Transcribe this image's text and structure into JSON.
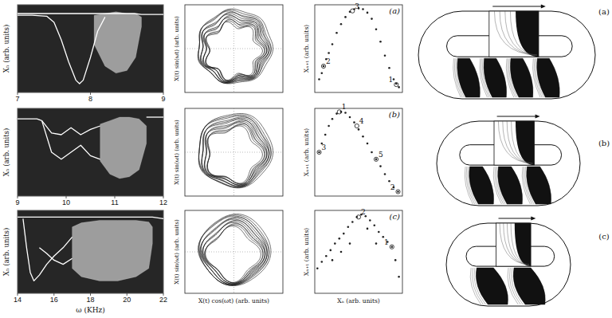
{
  "chart_data": [
    {
      "type": "line",
      "ylabel": "Xₙ (arb. units)",
      "xlim": [
        7,
        9
      ],
      "xticks": [
        7,
        8,
        9
      ],
      "ylim": [
        0,
        1
      ],
      "tick_labels": "x",
      "color": "#ffffff",
      "series": [
        {
          "type": "line",
          "x": [
            7,
            7.2,
            7.4,
            7.5,
            7.6,
            7.7,
            7.8,
            7.85,
            7.9,
            8.0,
            8.1,
            8.2
          ],
          "values": [
            0.88,
            0.88,
            0.87,
            0.8,
            0.6,
            0.35,
            0.14,
            0.1,
            0.14,
            0.4,
            0.7,
            0.86
          ]
        },
        {
          "type": "line",
          "x": [
            7,
            7.4,
            7.8,
            8.2,
            8.6,
            8.7,
            9
          ],
          "values": [
            0.9,
            0.9,
            0.9,
            0.9,
            0.9,
            0.89,
            0.89
          ]
        },
        {
          "type": "band",
          "x": [
            8.05,
            8.2,
            8.35,
            8.5,
            8.62,
            8.7
          ],
          "low": [
            0.55,
            0.3,
            0.22,
            0.25,
            0.4,
            0.75
          ],
          "high": [
            0.88,
            0.9,
            0.92,
            0.9,
            0.9,
            0.86
          ]
        }
      ]
    },
    {
      "type": "line",
      "ylabel": "Xₙ (arb. units)",
      "xlim": [
        9,
        12
      ],
      "xticks": [
        9,
        10,
        11,
        12
      ],
      "ylim": [
        0,
        1
      ],
      "tick_labels": "x",
      "color": "#ffffff",
      "series": [
        {
          "type": "line",
          "x": [
            9,
            9.2,
            9.4,
            9.5
          ],
          "values": [
            0.88,
            0.88,
            0.88,
            0.86
          ]
        },
        {
          "type": "line",
          "x": [
            9.5,
            9.7,
            9.9,
            10.1,
            10.3,
            10.5,
            10.7
          ],
          "values": [
            0.86,
            0.72,
            0.7,
            0.78,
            0.7,
            0.76,
            0.8
          ]
        },
        {
          "type": "line",
          "x": [
            9.5,
            9.7,
            9.9,
            10.1,
            10.3,
            10.5,
            10.7
          ],
          "values": [
            0.86,
            0.5,
            0.42,
            0.5,
            0.58,
            0.46,
            0.42
          ]
        },
        {
          "type": "band",
          "x": [
            10.7,
            10.9,
            11.1,
            11.3,
            11.5,
            11.65
          ],
          "low": [
            0.4,
            0.25,
            0.2,
            0.22,
            0.3,
            0.6
          ],
          "high": [
            0.82,
            0.86,
            0.9,
            0.9,
            0.88,
            0.8
          ]
        },
        {
          "type": "line",
          "x": [
            11.65,
            11.8,
            12
          ],
          "values": [
            0.9,
            0.9,
            0.9
          ]
        }
      ]
    },
    {
      "type": "line",
      "ylabel": "Xₙ (arb. units)",
      "xlabel": "ω (KHz)",
      "xlim": [
        14,
        22
      ],
      "xticks": [
        14,
        16,
        18,
        20,
        22
      ],
      "ylim": [
        0,
        1
      ],
      "tick_labels": "x",
      "color": "#ffffff",
      "series": [
        {
          "type": "line",
          "x": [
            14,
            16,
            18,
            20,
            21.4,
            22
          ],
          "values": [
            0.92,
            0.92,
            0.92,
            0.92,
            0.92,
            0.9
          ]
        },
        {
          "type": "line",
          "x": [
            14.3,
            14.5,
            14.7,
            14.9,
            15.2,
            15.6,
            16.0,
            16.5,
            17.0
          ],
          "values": [
            0.9,
            0.55,
            0.25,
            0.15,
            0.22,
            0.35,
            0.45,
            0.55,
            0.68
          ]
        },
        {
          "type": "line",
          "x": [
            15.2,
            15.6,
            16.0,
            16.5,
            17.0
          ],
          "values": [
            0.55,
            0.48,
            0.4,
            0.35,
            0.42
          ]
        },
        {
          "type": "band",
          "x": [
            17,
            17.5,
            18.5,
            19.5,
            20.5,
            21.2,
            21.4
          ],
          "low": [
            0.3,
            0.2,
            0.15,
            0.15,
            0.2,
            0.3,
            0.6
          ],
          "high": [
            0.8,
            0.85,
            0.88,
            0.88,
            0.88,
            0.86,
            0.8
          ]
        }
      ]
    },
    {
      "type": "scatter",
      "title": "(a)",
      "ylabel": "Xₙ₊₁ (arb. units)",
      "xlim": [
        0,
        1
      ],
      "ylim": [
        0,
        1
      ],
      "tick_labels": false,
      "color": "#222222",
      "marker": "dot",
      "x": [
        0.05,
        0.08,
        0.1,
        0.13,
        0.16,
        0.2,
        0.25,
        0.3,
        0.35,
        0.4,
        0.45,
        0.5,
        0.55,
        0.6,
        0.65,
        0.7,
        0.75,
        0.8,
        0.85,
        0.9,
        0.93,
        0.96
      ],
      "values": [
        0.15,
        0.22,
        0.3,
        0.38,
        0.45,
        0.55,
        0.68,
        0.78,
        0.86,
        0.92,
        0.95,
        0.96,
        0.95,
        0.91,
        0.84,
        0.72,
        0.58,
        0.42,
        0.28,
        0.15,
        0.1,
        0.06
      ],
      "annotations": [
        {
          "text": "1",
          "x": 0.93,
          "y": 0.09
        },
        {
          "text": "2",
          "x": 0.1,
          "y": 0.3
        },
        {
          "text": "3",
          "x": 0.43,
          "y": 0.93
        }
      ]
    },
    {
      "type": "scatter",
      "title": "(b)",
      "ylabel": "Xₙ₊₁ (arb. units)",
      "xlim": [
        0,
        1
      ],
      "ylim": [
        0,
        1
      ],
      "tick_labels": false,
      "color": "#222222",
      "marker": "dot",
      "x": [
        0.05,
        0.08,
        0.12,
        0.16,
        0.2,
        0.25,
        0.3,
        0.35,
        0.4,
        0.45,
        0.5,
        0.55,
        0.6,
        0.65,
        0.7,
        0.75,
        0.8,
        0.85,
        0.9,
        0.95
      ],
      "values": [
        0.5,
        0.6,
        0.7,
        0.8,
        0.88,
        0.94,
        0.96,
        0.95,
        0.9,
        0.84,
        0.76,
        0.68,
        0.6,
        0.5,
        0.42,
        0.34,
        0.25,
        0.17,
        0.1,
        0.05
      ],
      "annotations": [
        {
          "text": "1",
          "x": 0.28,
          "y": 0.96
        },
        {
          "text": "2",
          "x": 0.95,
          "y": 0.05
        },
        {
          "text": "3",
          "x": 0.05,
          "y": 0.5
        },
        {
          "text": "4",
          "x": 0.48,
          "y": 0.8
        },
        {
          "text": "5",
          "x": 0.7,
          "y": 0.42
        }
      ]
    },
    {
      "type": "scatter",
      "title": "(c)",
      "ylabel": "Xₙ₊₁ (arb. units)",
      "xlabel": "Xₙ (arb. units)",
      "xlim": [
        0,
        1
      ],
      "ylim": [
        0,
        1
      ],
      "tick_labels": false,
      "color": "#222222",
      "marker": "dot",
      "x": [
        0.03,
        0.08,
        0.13,
        0.18,
        0.23,
        0.28,
        0.33,
        0.38,
        0.43,
        0.48,
        0.53,
        0.58,
        0.63,
        0.68,
        0.73,
        0.78,
        0.83,
        0.88,
        0.92,
        0.96,
        0.2,
        0.3,
        0.4,
        0.6,
        0.7
      ],
      "values": [
        0.3,
        0.38,
        0.45,
        0.52,
        0.6,
        0.66,
        0.72,
        0.8,
        0.86,
        0.92,
        0.95,
        0.93,
        0.88,
        0.82,
        0.74,
        0.68,
        0.62,
        0.56,
        0.4,
        0.2,
        0.4,
        0.5,
        0.6,
        0.78,
        0.6
      ],
      "annotations": [
        {
          "text": "2",
          "x": 0.5,
          "y": 0.92
        },
        {
          "text": "1",
          "x": 0.88,
          "y": 0.56
        }
      ]
    }
  ],
  "phase_portraits": [
    {
      "ylabel": "X(t) sin(ωt) (arb. units)"
    },
    {
      "ylabel": "X(t) sin(ωt) (arb. units)"
    },
    {
      "ylabel": "X(t) sin(ωt) (arb. units)",
      "xlabel": "X(t) cos(ωt) (arb. units)"
    }
  ],
  "templates": [
    {
      "label": "(a)"
    },
    {
      "label": "(b)"
    },
    {
      "label": "(c)"
    }
  ]
}
